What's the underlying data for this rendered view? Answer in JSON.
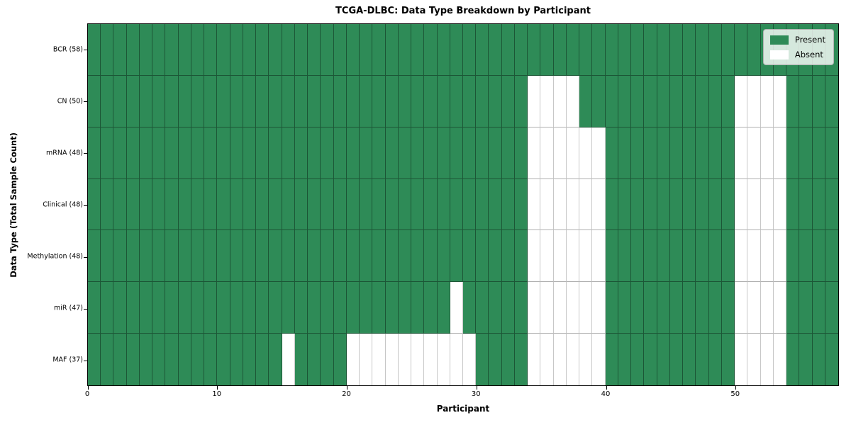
{
  "chart_data": {
    "type": "heatmap",
    "title": "TCGA-DLBC: Data Type Breakdown by Participant",
    "xlabel": "Participant",
    "ylabel": "Data Type (Total Sample Count)",
    "legend_labels": [
      "Present",
      "Absent"
    ],
    "legend_position": "upper right",
    "n_participants": 58,
    "x_range": [
      0,
      58
    ],
    "x_ticks": [
      0,
      10,
      20,
      30,
      40,
      50
    ],
    "colors": {
      "present": "#2e8b57",
      "absent": "#ffffff"
    },
    "rows": [
      {
        "label": "BCR (58)",
        "data_type": "BCR",
        "total_samples": 58,
        "absent_participants": []
      },
      {
        "label": "CN (50)",
        "data_type": "CN",
        "total_samples": 50,
        "absent_participants": [
          34,
          35,
          36,
          37,
          50,
          51,
          52,
          53
        ]
      },
      {
        "label": "mRNA (48)",
        "data_type": "mRNA",
        "total_samples": 48,
        "absent_participants": [
          34,
          35,
          36,
          37,
          38,
          39,
          50,
          51,
          52,
          53
        ]
      },
      {
        "label": "Clinical (48)",
        "data_type": "Clinical",
        "total_samples": 48,
        "absent_participants": [
          34,
          35,
          36,
          37,
          38,
          39,
          50,
          51,
          52,
          53
        ]
      },
      {
        "label": "Methylation (48)",
        "data_type": "Methylation",
        "total_samples": 48,
        "absent_participants": [
          34,
          35,
          36,
          37,
          38,
          39,
          50,
          51,
          52,
          53
        ]
      },
      {
        "label": "miR (47)",
        "data_type": "miR",
        "total_samples": 47,
        "absent_participants": [
          28,
          34,
          35,
          36,
          37,
          38,
          39,
          50,
          51,
          52,
          53
        ]
      },
      {
        "label": "MAF (37)",
        "data_type": "MAF",
        "total_samples": 37,
        "absent_participants": [
          15,
          20,
          21,
          22,
          23,
          24,
          25,
          26,
          27,
          28,
          29,
          34,
          35,
          36,
          37,
          38,
          39,
          50,
          51,
          52,
          53
        ]
      }
    ]
  }
}
